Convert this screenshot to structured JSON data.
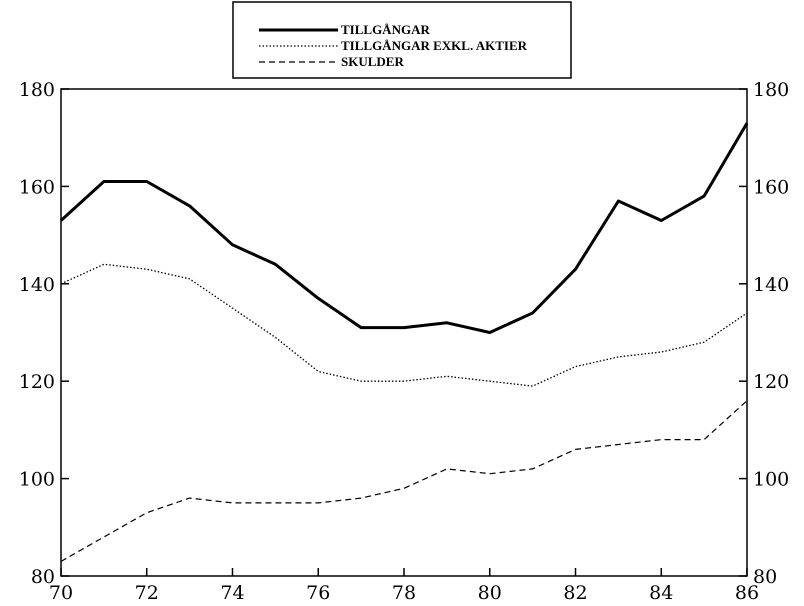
{
  "chart_data": {
    "type": "line",
    "x": [
      70,
      71,
      72,
      73,
      74,
      75,
      76,
      77,
      78,
      79,
      80,
      81,
      82,
      83,
      84,
      85,
      86
    ],
    "series": [
      {
        "name": "TILLGÅNGAR",
        "style": "solid",
        "color": "#000000",
        "values": [
          153,
          161,
          161,
          156,
          148,
          144,
          137,
          131,
          131,
          132,
          130,
          134,
          143,
          157,
          153,
          158,
          173
        ]
      },
      {
        "name": "TILLGÅNGAR EXKL. AKTIER",
        "style": "dotted",
        "color": "#000000",
        "values": [
          140,
          144,
          143,
          141,
          135,
          129,
          122,
          120,
          120,
          121,
          120,
          119,
          123,
          125,
          126,
          128,
          134
        ]
      },
      {
        "name": "SKULDER",
        "style": "dashed",
        "color": "#000000",
        "values": [
          83,
          88,
          93,
          96,
          95,
          95,
          95,
          96,
          98,
          102,
          101,
          102,
          106,
          107,
          108,
          108,
          116
        ]
      }
    ],
    "xlim": [
      70,
      86
    ],
    "ylim": [
      80,
      180
    ],
    "x_ticks": [
      "70",
      "72",
      "74",
      "76",
      "78",
      "80",
      "82",
      "84",
      "86"
    ],
    "y_ticks": [
      "80",
      "100",
      "120",
      "140",
      "160",
      "180"
    ],
    "y_ticks_right": [
      "80",
      "100",
      "120",
      "140",
      "160",
      "180"
    ],
    "grid": false,
    "legend_position": "top-center"
  }
}
